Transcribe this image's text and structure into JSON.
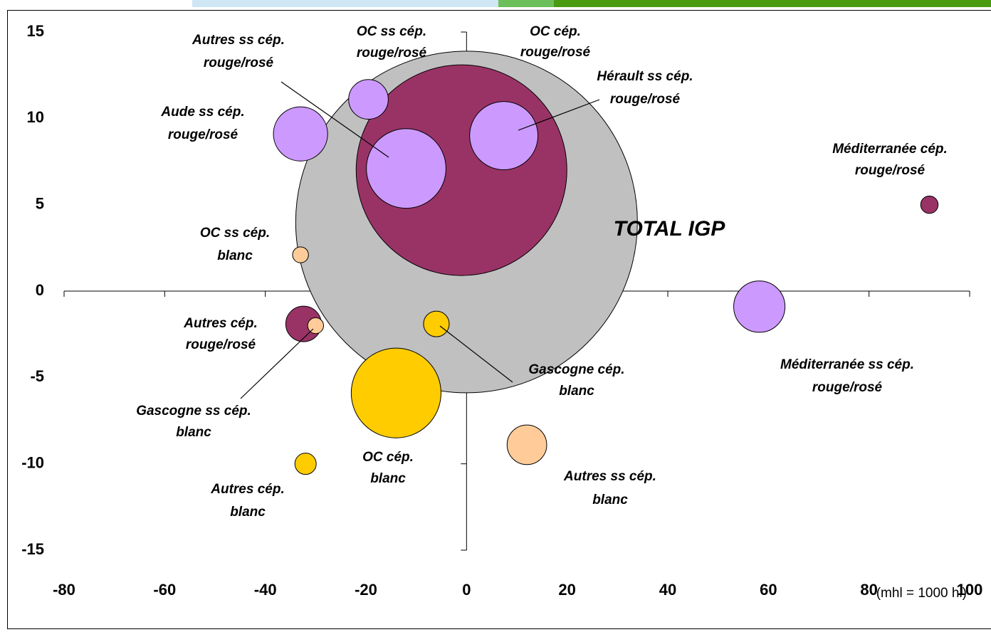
{
  "chart_data": {
    "type": "bubble",
    "xlim": [
      -80,
      100
    ],
    "xticks": [
      -80,
      -60,
      -40,
      -20,
      0,
      20,
      40,
      60,
      80,
      100
    ],
    "ylim": [
      -15,
      15
    ],
    "yticks": [
      -15,
      -10,
      -5,
      0,
      5,
      10,
      15
    ],
    "note": "(mhl = 1000 hl)",
    "points": [
      {
        "label": [
          "TOTAL IGP"
        ],
        "x": 0,
        "y": 4,
        "size": 2304,
        "color": "#c0c0c0"
      },
      {
        "label": [
          "OC cép.",
          "rouge/rosé"
        ],
        "x": -1,
        "y": 7,
        "size": 876,
        "color": "#993366"
      },
      {
        "label": [
          "Hérault ss cép.",
          "rouge/rosé"
        ],
        "x": 7.4,
        "y": 9,
        "size": 92,
        "color": "#cc99ff"
      },
      {
        "label": [
          "Autres ss cép.",
          "rouge/rosé"
        ],
        "x": -12,
        "y": 7.1,
        "size": 125,
        "color": "#cc99ff"
      },
      {
        "label": [
          "OC ss cép.",
          "rouge/rosé"
        ],
        "x": -19.5,
        "y": 11.1,
        "size": 31,
        "color": "#cc99ff"
      },
      {
        "label": [
          "Aude ss cép.",
          "rouge/rosé"
        ],
        "x": -33,
        "y": 9.1,
        "size": 58,
        "color": "#cc99ff"
      },
      {
        "label": [
          "Méditerranée cép.",
          "rouge/rosé"
        ],
        "x": 92,
        "y": 5,
        "size": 6,
        "color": "#993366"
      },
      {
        "label": [
          "OC ss cép.",
          "blanc"
        ],
        "x": -33,
        "y": 2.1,
        "size": 5,
        "color": "#ffcc99"
      },
      {
        "label": [
          "Méditerranée ss cép.",
          "rouge/rosé"
        ],
        "x": 58.2,
        "y": -0.9,
        "size": 52,
        "color": "#cc99ff"
      },
      {
        "label": [
          "Autres cép.",
          "rouge/rosé"
        ],
        "x": -32.4,
        "y": -1.9,
        "size": 25,
        "color": "#993366"
      },
      {
        "label": [
          "Gascogne ss cép.",
          "blanc"
        ],
        "x": -30,
        "y": -2,
        "size": 5,
        "color": "#ffcc99"
      },
      {
        "label": [
          "Gascogne cép.",
          "blanc"
        ],
        "x": -6,
        "y": -1.9,
        "size": 13,
        "color": "#ffcc00"
      },
      {
        "label": [
          "OC cép.",
          "blanc"
        ],
        "x": -14,
        "y": -5.9,
        "size": 159,
        "color": "#ffcc00"
      },
      {
        "label": [
          "Autres ss cép.",
          "blanc"
        ],
        "x": 12,
        "y": -8.9,
        "size": 31,
        "color": "#ffcc99"
      },
      {
        "label": [
          "Autres cép.",
          "blanc"
        ],
        "x": -32,
        "y": -10,
        "size": 9,
        "color": "#ffcc00"
      }
    ]
  }
}
